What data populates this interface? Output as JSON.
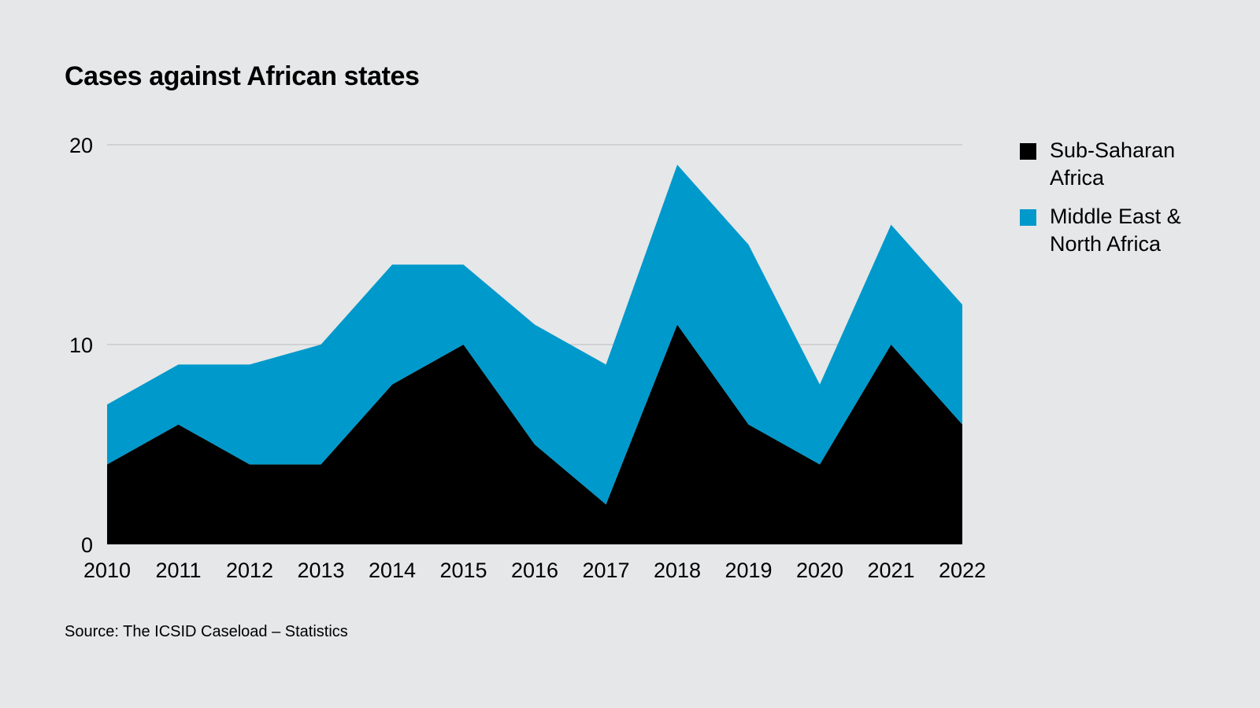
{
  "title": "Cases against African states",
  "source": "Source: The ICSID Caseload – Statistics",
  "chart_data": {
    "type": "area",
    "stacked": true,
    "title": "Cases against African states",
    "xlabel": "",
    "ylabel": "",
    "x": [
      "2010",
      "2011",
      "2012",
      "2013",
      "2014",
      "2015",
      "2016",
      "2017",
      "2018",
      "2019",
      "2020",
      "2021",
      "2022"
    ],
    "series": [
      {
        "name": "Sub-Saharan Africa",
        "color": "#000000",
        "values": [
          4,
          6,
          4,
          4,
          8,
          10,
          5,
          2,
          11,
          6,
          4,
          10,
          6
        ]
      },
      {
        "name": "Middle East & North Africa",
        "color": "#0099cc",
        "values": [
          3,
          3,
          5,
          6,
          6,
          4,
          6,
          7,
          8,
          9,
          4,
          6,
          6
        ]
      }
    ],
    "ylim": [
      0,
      20
    ],
    "yticks": [
      "0",
      "10",
      "20"
    ],
    "grid": true,
    "legend_position": "right"
  },
  "legend": {
    "items": [
      {
        "label": "Sub-Saharan Africa",
        "color": "#000000"
      },
      {
        "label": "Middle East & North Africa",
        "color": "#0099cc"
      }
    ]
  }
}
